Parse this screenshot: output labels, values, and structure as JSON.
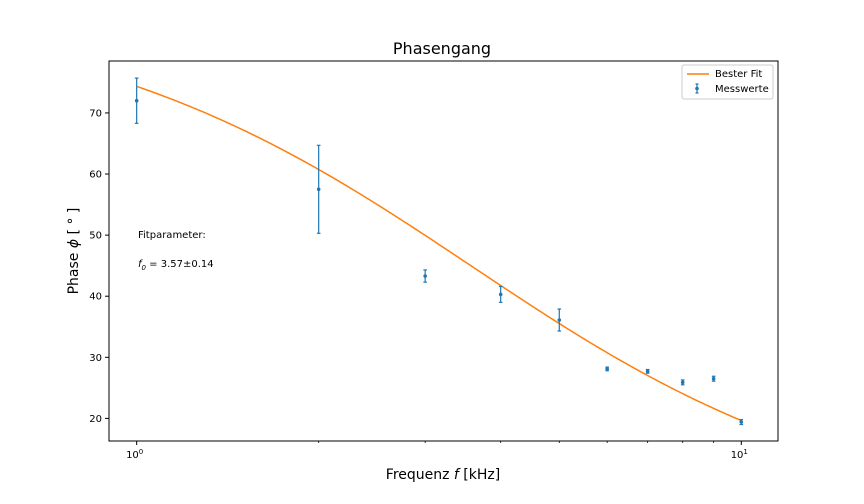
{
  "chart_data": {
    "type": "scatter",
    "title": "Phasengang",
    "xlabel_prefix": "Frequenz ",
    "xlabel_var": "f",
    "xlabel_unit": " [kHz]",
    "ylabel_prefix": "Phase ",
    "ylabel_var": "ϕ",
    "ylabel_unit": " [ ° ]",
    "x_scale": "log",
    "xlim": [
      0.9,
      11.5
    ],
    "ylim": [
      16.3,
      78.5
    ],
    "x_ticks": [
      {
        "value": 1,
        "base": "10",
        "exp": "0"
      },
      {
        "value": 10,
        "base": "10",
        "exp": "1"
      }
    ],
    "y_ticks": [
      20,
      30,
      40,
      50,
      60,
      70
    ],
    "grid": false,
    "legend_position": "top-right",
    "series": [
      {
        "name": "Messwerte",
        "kind": "errorbar",
        "color": "#1f77b4",
        "x": [
          1,
          2,
          3,
          4,
          5,
          6,
          7,
          8,
          9,
          10
        ],
        "y": [
          72.0,
          57.5,
          43.3,
          40.3,
          36.1,
          28.1,
          27.7,
          25.9,
          26.5,
          19.4
        ],
        "yerr": [
          3.7,
          7.2,
          1.0,
          1.3,
          1.8,
          0.3,
          0.3,
          0.4,
          0.4,
          0.4
        ]
      },
      {
        "name": "Bester Fit",
        "kind": "line",
        "color": "#ff7f0e",
        "fit_param_f0": 3.57
      }
    ],
    "annotations": {
      "heading": "Fitparameter:",
      "param_var": "f",
      "param_sub": "0",
      "param_text": " = 3.57±0.14"
    }
  }
}
